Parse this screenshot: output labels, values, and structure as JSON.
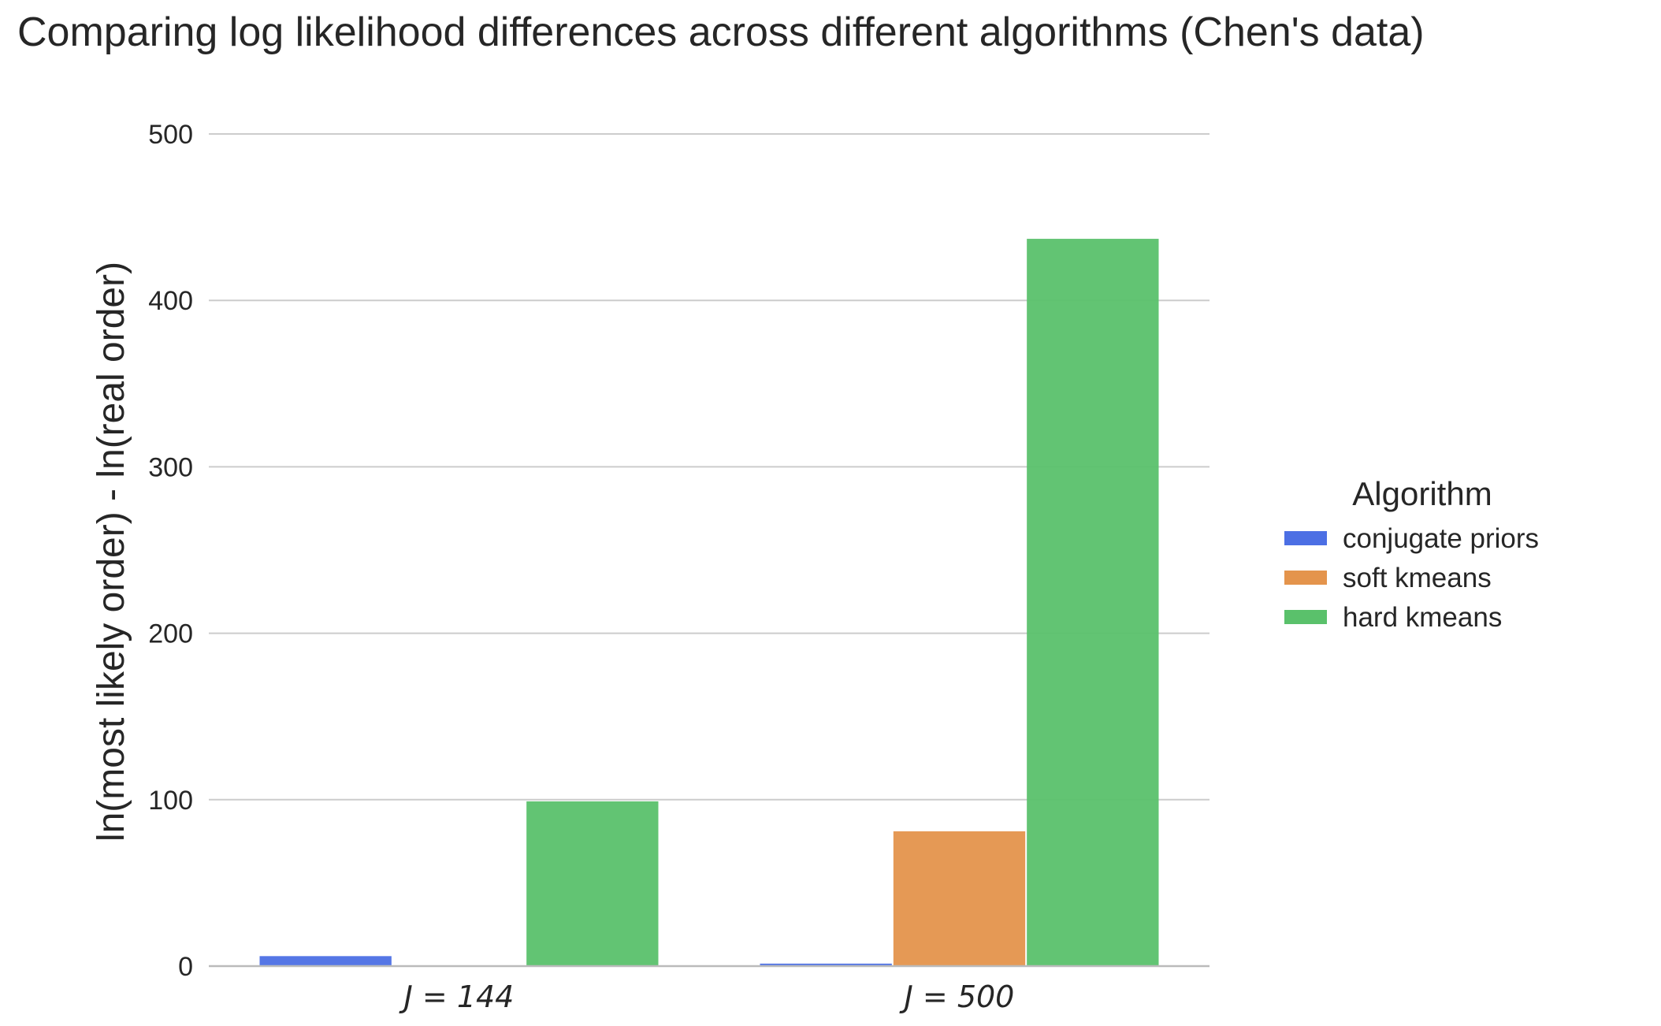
{
  "chart_data": {
    "type": "bar",
    "title": "Comparing log likelihood differences across different algorithms (Chen's data)",
    "xlabel": "",
    "ylabel": "ln(most likely order) - ln(real order)",
    "categories": [
      "J = 144",
      "J = 500"
    ],
    "series": [
      {
        "name": "conjugate priors",
        "values": [
          6,
          1.5
        ],
        "color": "#4c6fe4"
      },
      {
        "name": "soft kmeans",
        "values": [
          0,
          81
        ],
        "color": "#e4944c"
      },
      {
        "name": "hard kmeans",
        "values": [
          99,
          437
        ],
        "color": "#5ac16b"
      }
    ],
    "ylim": [
      0,
      500
    ],
    "yticks": [
      0,
      100,
      200,
      300,
      400,
      500
    ],
    "grid": "horizontal",
    "legend": {
      "title": "Algorithm",
      "placement": "center-right"
    }
  }
}
